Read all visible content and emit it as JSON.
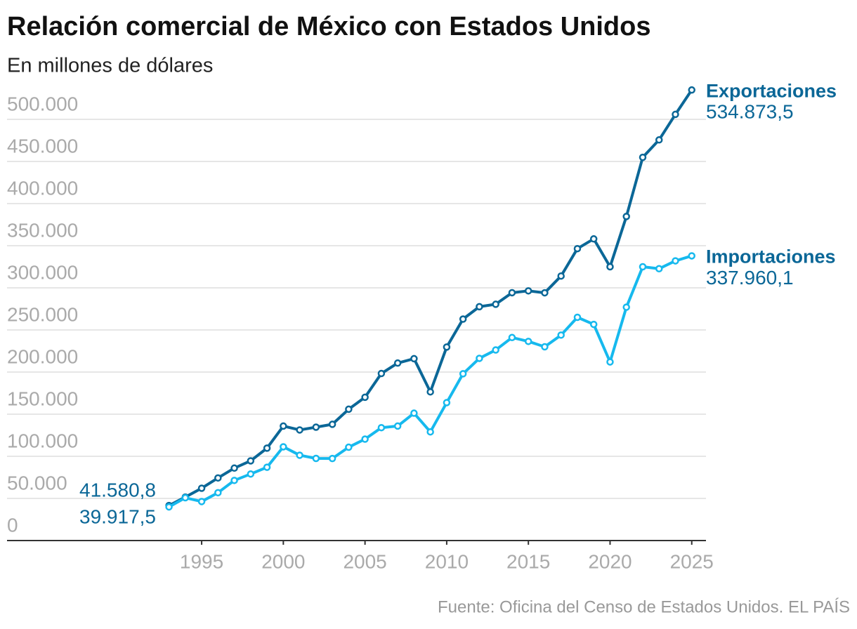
{
  "chart_data": {
    "type": "line",
    "title": "Relación comercial de México con Estados Unidos",
    "subtitle": "En millones de dólares",
    "source": "Fuente: Oficina del Censo de Estados Unidos. EL PAÍS",
    "x": [
      1993,
      1994,
      1995,
      1996,
      1997,
      1998,
      1999,
      2000,
      2001,
      2002,
      2003,
      2004,
      2005,
      2006,
      2007,
      2008,
      2009,
      2010,
      2011,
      2012,
      2013,
      2014,
      2015,
      2016,
      2017,
      2018,
      2019,
      2020,
      2021,
      2022,
      2023,
      2024,
      2025
    ],
    "xlim": [
      1983,
      2026
    ],
    "xticks": [
      1995,
      2000,
      2005,
      2010,
      2015,
      2020,
      2025
    ],
    "ylim": [
      0,
      500000
    ],
    "yticks": [
      0,
      {
        "value": 50000,
        "label": "50.000"
      },
      {
        "value": 100000,
        "label": "100.000"
      },
      {
        "value": 150000,
        "label": "150.000"
      },
      {
        "value": 200000,
        "label": "200.000"
      },
      {
        "value": 250000,
        "label": "250.000"
      },
      {
        "value": 300000,
        "label": "300.000"
      },
      {
        "value": 350000,
        "label": "350.000"
      },
      {
        "value": 400000,
        "label": "400.000"
      },
      {
        "value": 450000,
        "label": "450.000"
      },
      {
        "value": 500000,
        "label": "500.000"
      }
    ],
    "grid": true,
    "series": [
      {
        "name": "Exportaciones",
        "color": "#0b6797",
        "values": [
          41580.8,
          51600,
          62100,
          74300,
          86000,
          94600,
          109700,
          135900,
          131300,
          134600,
          138000,
          155900,
          170100,
          198300,
          210700,
          215900,
          176500,
          229700,
          262900,
          277600,
          280500,
          294200,
          296400,
          294100,
          314000,
          346500,
          358100,
          325000,
          384700,
          454900,
          475600,
          505900,
          534873.5
        ],
        "value_labels": [
          "41.580,8",
          null,
          null,
          null,
          null,
          null,
          null,
          null,
          null,
          null,
          null,
          null,
          null,
          null,
          null,
          null,
          null,
          null,
          null,
          null,
          null,
          null,
          null,
          null,
          null,
          null,
          null,
          null,
          null,
          null,
          null,
          null,
          "534.873,5"
        ]
      },
      {
        "name": "Importaciones",
        "color": "#16b9ee",
        "values": [
          39917.5,
          50800,
          46300,
          56800,
          71400,
          79000,
          87000,
          111300,
          101300,
          97500,
          97400,
          110800,
          120400,
          134000,
          135900,
          151200,
          129000,
          163700,
          198000,
          216300,
          226200,
          241000,
          236400,
          230000,
          243900,
          265000,
          256600,
          212000,
          277000,
          325000,
          322700,
          332000,
          337960.1
        ],
        "value_labels": [
          "39.917,5",
          null,
          null,
          null,
          null,
          null,
          null,
          null,
          null,
          null,
          null,
          null,
          null,
          null,
          null,
          null,
          null,
          null,
          null,
          null,
          null,
          null,
          null,
          null,
          null,
          null,
          null,
          null,
          null,
          null,
          null,
          null,
          "337.960,1"
        ]
      }
    ]
  }
}
